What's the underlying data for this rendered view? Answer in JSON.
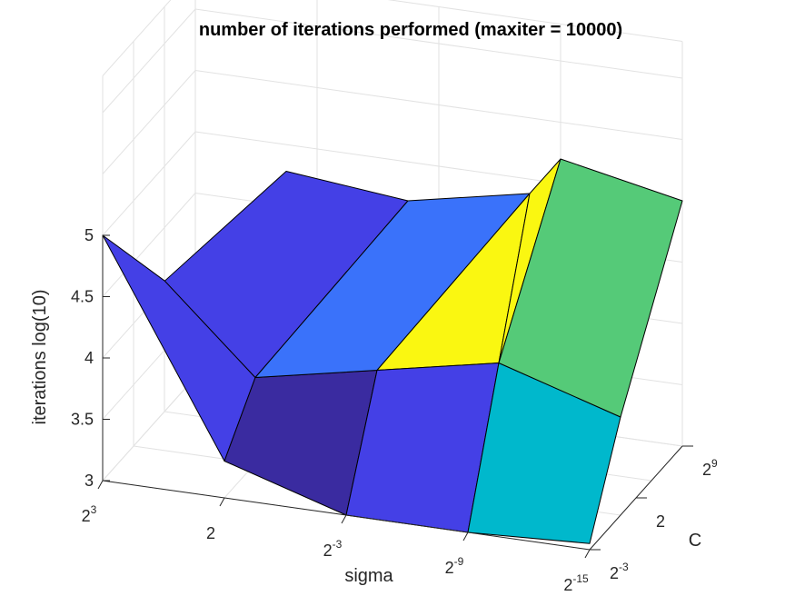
{
  "chart_data": {
    "type": "surface3d",
    "title": "number of iterations performed (maxiter = 10000)",
    "xlabel": "sigma",
    "ylabel": "C",
    "zlabel": "iterations log(10)",
    "x_ticks": [
      {
        "base": "2",
        "exp": "3"
      },
      {
        "base": "2",
        "exp": ""
      },
      {
        "base": "2",
        "exp": "-3"
      },
      {
        "base": "2",
        "exp": "-9"
      },
      {
        "base": "2",
        "exp": "-15"
      }
    ],
    "y_ticks": [
      {
        "base": "2",
        "exp": "-3"
      },
      {
        "base": "2",
        "exp": ""
      },
      {
        "base": "2",
        "exp": "9"
      }
    ],
    "z_ticks": [
      "3",
      "3.5",
      "4",
      "4.5",
      "5"
    ],
    "zlim": [
      3,
      5
    ],
    "grid": true,
    "faces": [
      {
        "vertices": [
          [
            0,
            0,
            5.0
          ],
          [
            0.51,
            0,
            4.7
          ],
          [
            1,
            0.5,
            3.7
          ],
          [
            1,
            0,
            3.3
          ]
        ],
        "color": "#4440e6"
      },
      {
        "vertices": [
          [
            1,
            0.5,
            3.7
          ],
          [
            0.51,
            0,
            4.7
          ],
          [
            1,
            1,
            5.1
          ],
          [
            2,
            1,
            5.0
          ]
        ],
        "color": "#4440e6"
      },
      {
        "vertices": [
          [
            1,
            0,
            3.3
          ],
          [
            1,
            0.5,
            3.7
          ],
          [
            2,
            0.5,
            3.9
          ],
          [
            2,
            0,
            3.0
          ]
        ],
        "color": "#3a2ba0"
      },
      {
        "vertices": [
          [
            1,
            0.5,
            3.7
          ],
          [
            2,
            1,
            5.0
          ],
          [
            3,
            1,
            5.2
          ],
          [
            2,
            0.5,
            3.9
          ]
        ],
        "color": "#3a72fa"
      },
      {
        "vertices": [
          [
            2,
            0.5,
            3.9
          ],
          [
            3,
            1,
            5.2
          ],
          [
            3,
            0.5,
            4.1
          ]
        ],
        "color": "#faf711"
      },
      {
        "vertices": [
          [
            3,
            1,
            5.2
          ],
          [
            3,
            1.5,
            5.2
          ],
          [
            3,
            0.5,
            4.1
          ]
        ],
        "color": "#faf711"
      },
      {
        "vertices": [
          [
            2,
            0,
            3.0
          ],
          [
            2,
            0.5,
            3.9
          ],
          [
            3,
            0.5,
            4.1
          ],
          [
            3,
            0,
            3.0
          ]
        ],
        "color": "#4440e6"
      },
      {
        "vertices": [
          [
            3,
            0,
            3.0
          ],
          [
            3,
            0.5,
            4.1
          ],
          [
            4,
            0.5,
            3.8
          ],
          [
            4,
            0,
            3.05
          ]
        ],
        "color": "#00b8cc"
      },
      {
        "vertices": [
          [
            3,
            0.5,
            4.1
          ],
          [
            3,
            1.5,
            5.2
          ],
          [
            4,
            1.5,
            5.0
          ],
          [
            4,
            0.5,
            3.8
          ]
        ],
        "color": "#55ca78"
      }
    ]
  }
}
